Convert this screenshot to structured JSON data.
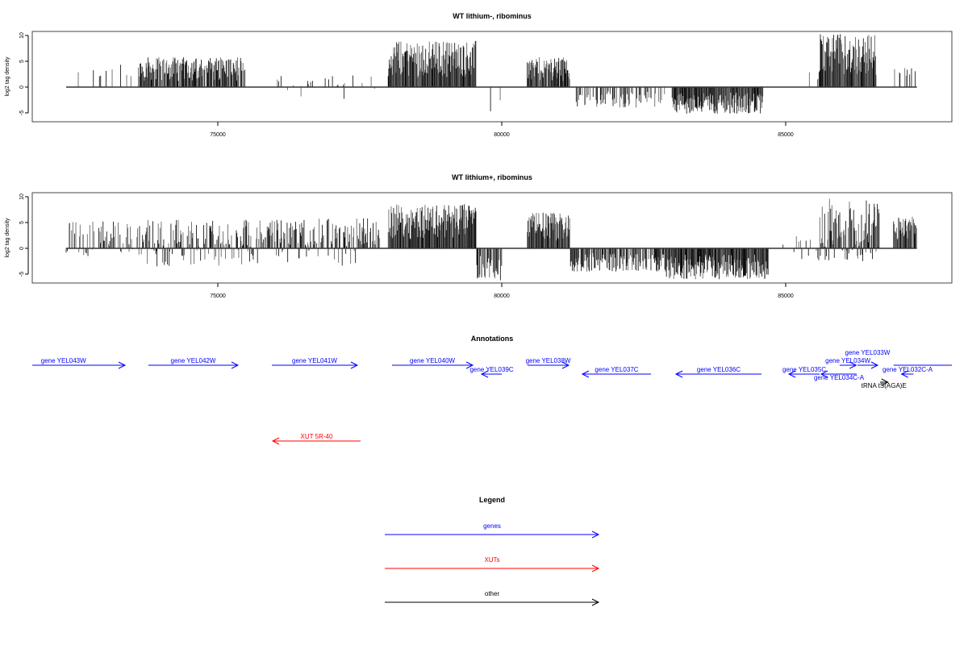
{
  "chart_data": [
    {
      "type": "bar",
      "title": "WT lithium-, ribominus",
      "ylabel": "log2 tag density",
      "xlim": [
        71733,
        87926
      ],
      "ylim": [
        -7,
        11
      ],
      "xticks": [
        75000,
        80000,
        85000
      ],
      "xtick_labels": [
        "75000",
        "80000",
        "85000"
      ],
      "yticks": [
        -5,
        0,
        5,
        10
      ],
      "ytick_labels": [
        "-5",
        "0",
        "5",
        "10"
      ],
      "baseline": [
        72330,
        87310
      ],
      "signal_regions": [
        {
          "start": 72330,
          "end": 73500,
          "min": 0,
          "max": 4.5,
          "fill": 0.12
        },
        {
          "start": 73600,
          "end": 75500,
          "min": 0,
          "max": 5.8,
          "fill": 0.85
        },
        {
          "start": 75900,
          "end": 77800,
          "min": -2.5,
          "max": 2.5,
          "fill": 0.12
        },
        {
          "start": 78000,
          "end": 79550,
          "min": 0,
          "max": 9,
          "fill": 1
        },
        {
          "start": 79600,
          "end": 80000,
          "min": -6.2,
          "max": 0,
          "fill": 0.1
        },
        {
          "start": 80450,
          "end": 81200,
          "min": 0,
          "max": 5.8,
          "fill": 0.9
        },
        {
          "start": 81300,
          "end": 82900,
          "min": -4,
          "max": 0,
          "fill": 0.45
        },
        {
          "start": 83000,
          "end": 84600,
          "min": -5.2,
          "max": 0,
          "fill": 1
        },
        {
          "start": 85150,
          "end": 85600,
          "min": 0,
          "max": 3,
          "fill": 0.06
        },
        {
          "start": 85600,
          "end": 86600,
          "min": 0,
          "max": 10.3,
          "fill": 1
        },
        {
          "start": 86800,
          "end": 87300,
          "min": 0,
          "max": 4.3,
          "fill": 0.2
        }
      ]
    },
    {
      "type": "bar",
      "title": "WT lithium+, ribominus",
      "ylabel": "log2 tag density",
      "xlim": [
        71733,
        87926
      ],
      "ylim": [
        -7,
        11
      ],
      "xticks": [
        75000,
        80000,
        85000
      ],
      "xtick_labels": [
        "75000",
        "80000",
        "85000"
      ],
      "yticks": [
        -5,
        0,
        5,
        10
      ],
      "ytick_labels": [
        "-5",
        "0",
        "5",
        "10"
      ],
      "baseline": [
        72330,
        87310
      ],
      "signal_regions": [
        {
          "start": 72330,
          "end": 73600,
          "min": -1.5,
          "max": 5.3,
          "fill": 0.45
        },
        {
          "start": 73600,
          "end": 77900,
          "min": -3.5,
          "max": 5.8,
          "fill": 0.7
        },
        {
          "start": 78000,
          "end": 79550,
          "min": 0,
          "max": 8.6,
          "fill": 1
        },
        {
          "start": 79550,
          "end": 80000,
          "min": -6.2,
          "max": 0,
          "fill": 0.7
        },
        {
          "start": 80450,
          "end": 81200,
          "min": 0,
          "max": 7,
          "fill": 1
        },
        {
          "start": 81200,
          "end": 82900,
          "min": -4.5,
          "max": 0,
          "fill": 0.7
        },
        {
          "start": 82900,
          "end": 84700,
          "min": -6,
          "max": 0,
          "fill": 1
        },
        {
          "start": 84900,
          "end": 85600,
          "min": -2.5,
          "max": 2.6,
          "fill": 0.12
        },
        {
          "start": 85600,
          "end": 86650,
          "min": -2.5,
          "max": 9.7,
          "fill": 1
        },
        {
          "start": 86900,
          "end": 87310,
          "min": 0,
          "max": 6.2,
          "fill": 0.9
        }
      ]
    }
  ],
  "annotations": {
    "title": "Annotations",
    "features": [
      {
        "label": "gene YEL043W",
        "start": 71200,
        "end": 73366,
        "strand": "+",
        "row": 1,
        "type": "gene"
      },
      {
        "label": "gene YEL042W",
        "start": 73778,
        "end": 75355,
        "strand": "+",
        "row": 1,
        "type": "gene"
      },
      {
        "label": "gene YEL041W",
        "start": 75952,
        "end": 77457,
        "strand": "+",
        "row": 1,
        "type": "gene"
      },
      {
        "label": "gene YEL040W",
        "start": 78068,
        "end": 79489,
        "strand": "+",
        "row": 1,
        "type": "gene"
      },
      {
        "label": "gene YEL039C",
        "start": 79645,
        "end": 80000,
        "strand": "-",
        "row": 2,
        "type": "gene"
      },
      {
        "label": "gene YEL038W",
        "start": 80455,
        "end": 81179,
        "strand": "+",
        "row": 1,
        "type": "gene"
      },
      {
        "label": "gene YEL037C",
        "start": 81420,
        "end": 82628,
        "strand": "-",
        "row": 2,
        "type": "gene"
      },
      {
        "label": "gene YEL036C",
        "start": 83068,
        "end": 84574,
        "strand": "-",
        "row": 2,
        "type": "gene"
      },
      {
        "label": "gene YEL035C",
        "start": 85057,
        "end": 85597,
        "strand": "-",
        "row": 2,
        "type": "gene"
      },
      {
        "label": "gene YEL034C-A",
        "start": 85625,
        "end": 86250,
        "strand": "-",
        "row": 2,
        "type": "gene"
      },
      {
        "label": "gene YEL034W",
        "start": 85950,
        "end": 86240,
        "strand": "+",
        "row": 1,
        "type": "gene"
      },
      {
        "label": "gene YEL033W",
        "start": 86264,
        "end": 86619,
        "strand": "+",
        "row": 1,
        "type": "gene"
      },
      {
        "label": "gene YEL032C-A",
        "start": 87040,
        "end": 87250,
        "strand": "-",
        "row": 2,
        "type": "gene"
      },
      {
        "label": "",
        "start": 86900,
        "end": 88600,
        "strand": "+",
        "row": 1,
        "type": "gene"
      },
      {
        "label": "tRNA tS(AGA)E",
        "start": 86660,
        "end": 86800,
        "strand": "+",
        "row": 3,
        "type": "other"
      },
      {
        "label": "XUT 5R-40",
        "start": 75966,
        "end": 77514,
        "strand": "-",
        "row": 6,
        "type": "xut"
      }
    ]
  },
  "legend": {
    "title": "Legend",
    "items": [
      {
        "label": "genes",
        "type": "gene"
      },
      {
        "label": "XUTs",
        "type": "xut"
      },
      {
        "label": "other",
        "type": "other"
      }
    ]
  },
  "colors": {
    "gene": "#0000ff",
    "xut": "#ff0000",
    "other": "#000000"
  }
}
